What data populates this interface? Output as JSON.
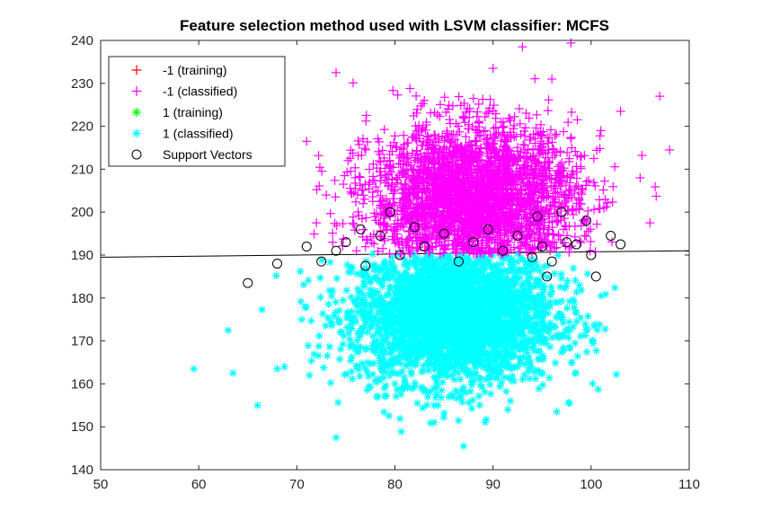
{
  "chart_data": {
    "type": "scatter",
    "title": "Feature selection method used with LSVM classifier: MCFS",
    "xlim": [
      50,
      110
    ],
    "ylim": [
      140,
      240
    ],
    "x_ticks": [
      50,
      60,
      70,
      80,
      90,
      100,
      110
    ],
    "y_ticks": [
      140,
      150,
      160,
      170,
      180,
      190,
      200,
      210,
      220,
      230,
      240
    ],
    "grid": false,
    "legend_position": "top-left",
    "decision_boundary": {
      "x": [
        50,
        110
      ],
      "y": [
        189.5,
        191
      ]
    },
    "series": [
      {
        "name": "-1 (training)",
        "marker": "plus",
        "color": "#ff0000",
        "points": []
      },
      {
        "name": "-1 (classified)",
        "marker": "plus",
        "color": "#ff00ff",
        "sample_points": [
          [
            74,
            232.5
          ],
          [
            93,
            238.5
          ],
          [
            71,
            216.5
          ],
          [
            107,
            227
          ],
          [
            108,
            214.5
          ],
          [
            103,
            223.5
          ],
          [
            72,
            197.5
          ],
          [
            97,
            201.5
          ],
          [
            83,
            226
          ],
          [
            90,
            233.5
          ],
          [
            96,
            231
          ],
          [
            88,
            226.5
          ],
          [
            101,
            219
          ],
          [
            105,
            208
          ],
          [
            73,
            204
          ],
          [
            85,
            212.5
          ],
          [
            92,
            207
          ],
          [
            80,
            195.5
          ],
          [
            99,
            213
          ],
          [
            106,
            197.5
          ]
        ]
      },
      {
        "name": "1 (training)",
        "marker": "asterisk",
        "color": "#00ff00",
        "points": []
      },
      {
        "name": "1 (classified)",
        "marker": "asterisk",
        "color": "#00ffff",
        "sample_points": [
          [
            59.5,
            163.5
          ],
          [
            63.5,
            162.5
          ],
          [
            66,
            155
          ],
          [
            87,
            145.5
          ],
          [
            74,
            147.5
          ],
          [
            96.5,
            153.5
          ],
          [
            63,
            172.5
          ],
          [
            68,
            163.5
          ],
          [
            101,
            180.5
          ],
          [
            98,
            165
          ],
          [
            84,
            151
          ],
          [
            91.5,
            154
          ],
          [
            70.5,
            175
          ],
          [
            77,
            168
          ],
          [
            82,
            178
          ],
          [
            89,
            172
          ],
          [
            95,
            183
          ],
          [
            80,
            160
          ],
          [
            86,
            185
          ],
          [
            93,
            170
          ]
        ]
      },
      {
        "name": "Support Vectors",
        "marker": "circle",
        "color": "#000000",
        "points": [
          [
            65,
            183.5
          ],
          [
            68,
            188
          ],
          [
            71,
            192
          ],
          [
            72.5,
            188.5
          ],
          [
            74,
            191
          ],
          [
            75,
            193
          ],
          [
            76.5,
            196
          ],
          [
            77,
            187.5
          ],
          [
            78.5,
            194.5
          ],
          [
            79.5,
            200
          ],
          [
            80.5,
            190
          ],
          [
            82,
            196.5
          ],
          [
            83,
            192
          ],
          [
            85,
            195
          ],
          [
            86.5,
            188.5
          ],
          [
            88,
            193
          ],
          [
            89.5,
            196
          ],
          [
            91,
            191
          ],
          [
            92.5,
            194.5
          ],
          [
            94,
            189.5
          ],
          [
            95,
            192
          ],
          [
            96,
            188.5
          ],
          [
            97,
            200
          ],
          [
            97.5,
            193
          ],
          [
            98.5,
            192.5
          ],
          [
            99.5,
            198
          ],
          [
            100,
            190
          ],
          [
            100.5,
            185
          ],
          [
            102,
            194.5
          ],
          [
            103,
            192.5
          ],
          [
            95.5,
            185
          ],
          [
            94.5,
            199
          ]
        ]
      }
    ]
  }
}
